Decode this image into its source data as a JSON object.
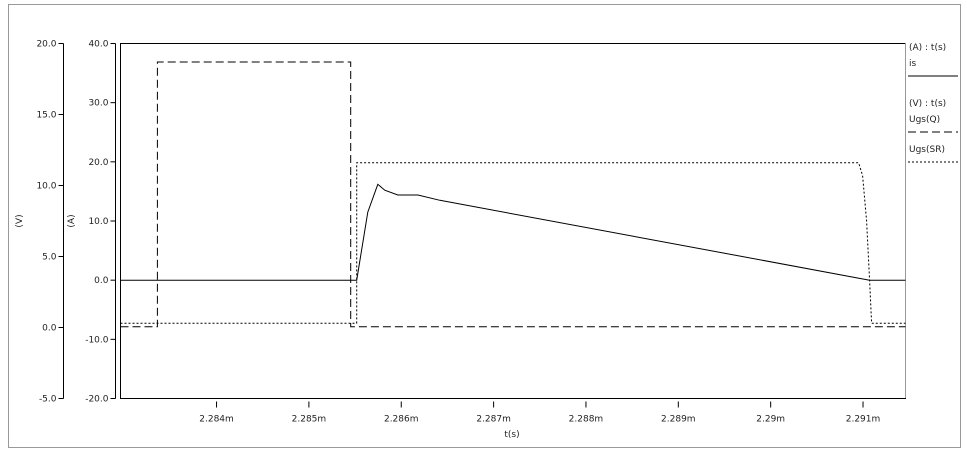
{
  "chart_data": {
    "type": "line",
    "xlabel": "t(s)",
    "xlim": [
      0.00228296,
      0.00229146
    ],
    "x_ticks": [
      {
        "value": 0.002284,
        "label": "2.284m"
      },
      {
        "value": 0.002285,
        "label": "2.285m"
      },
      {
        "value": 0.002286,
        "label": "2.286m"
      },
      {
        "value": 0.002287,
        "label": "2.287m"
      },
      {
        "value": 0.002288,
        "label": "2.288m"
      },
      {
        "value": 0.002289,
        "label": "2.289m"
      },
      {
        "value": 0.00229,
        "label": "2.29m"
      },
      {
        "value": 0.002291,
        "label": "2.291m"
      }
    ],
    "axes": {
      "voltage": {
        "label": "(V)",
        "ylim": [
          -5,
          20
        ],
        "ticks": [
          {
            "value": 20,
            "label": "20.0"
          },
          {
            "value": 15,
            "label": "15.0"
          },
          {
            "value": 10,
            "label": "10.0"
          },
          {
            "value": 5,
            "label": "5.0"
          },
          {
            "value": 0,
            "label": "0.0"
          },
          {
            "value": -5,
            "label": "-5.0"
          }
        ]
      },
      "current": {
        "label": "(A)",
        "ylim": [
          -20,
          40
        ],
        "ticks": [
          {
            "value": 40,
            "label": "40.0"
          },
          {
            "value": 30,
            "label": "30.0"
          },
          {
            "value": 20,
            "label": "20.0"
          },
          {
            "value": 10,
            "label": "10.0"
          },
          {
            "value": 0,
            "label": "0.0"
          },
          {
            "value": -10,
            "label": "-10.0"
          },
          {
            "value": -20,
            "label": "-20.0"
          }
        ]
      }
    },
    "grid": false,
    "legend_placement": "right",
    "legend_groups": [
      {
        "header": "(A) : t(s)",
        "entries": [
          "is"
        ]
      },
      {
        "header": "(V) : t(s)",
        "entries": [
          "Ugs(Q)",
          "Ugs(SR)"
        ]
      }
    ],
    "series": [
      {
        "name": "is",
        "axis": "current",
        "style": "solid",
        "color": "#000000",
        "x": [
          0.00228296,
          0.002285518,
          0.002285638,
          0.002285746,
          0.002285822,
          0.002285963,
          0.00228618,
          0.002286419,
          0.002291071,
          0.00229146
        ],
        "y": [
          0,
          0,
          11.5,
          16.2,
          15.2,
          14.4,
          14.4,
          13.5,
          0,
          0
        ]
      },
      {
        "name": "Ugs(Q)",
        "axis": "voltage",
        "style": "dashed",
        "color": "#000000",
        "x": [
          0.00228296,
          0.00228336,
          0.00228336,
          0.002285453,
          0.002285453,
          0.00229146
        ],
        "y": [
          0.05,
          0.05,
          18.7,
          18.7,
          0.05,
          0.05
        ]
      },
      {
        "name": "Ugs(SR)",
        "axis": "voltage",
        "style": "dotted",
        "color": "#000000",
        "x": [
          0.00228296,
          0.002285518,
          0.002285518,
          0.002290952,
          0.002290995,
          0.002291039,
          0.002291071,
          0.002291093,
          0.00229146
        ],
        "y": [
          0.3,
          0.3,
          11.6,
          11.6,
          10.7,
          7.5,
          3.3,
          0.3,
          0.3
        ]
      }
    ]
  }
}
